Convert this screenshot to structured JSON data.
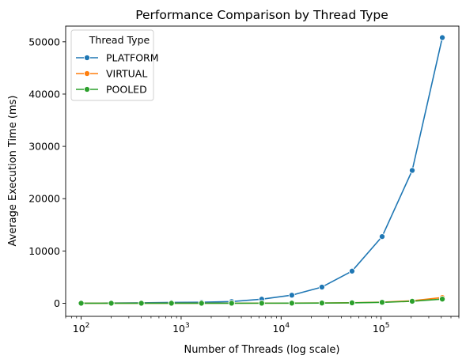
{
  "chart_data": {
    "type": "line",
    "title": "Performance Comparison by Thread Type",
    "xlabel": "Number of Threads (log scale)",
    "ylabel": "Average Execution Time (ms)",
    "xscale": "log",
    "xlim": [
      70,
      600000
    ],
    "ylim": [
      -2500,
      53000
    ],
    "x_ticks": [
      {
        "value": 100,
        "base": "10",
        "exp": "2"
      },
      {
        "value": 1000,
        "base": "10",
        "exp": "3"
      },
      {
        "value": 10000,
        "base": "10",
        "exp": "4"
      },
      {
        "value": 100000,
        "base": "10",
        "exp": "5"
      }
    ],
    "y_ticks": [
      0,
      10000,
      20000,
      30000,
      40000,
      50000
    ],
    "grid": false,
    "legend": {
      "title": "Thread Type",
      "placement": "top-left"
    },
    "x": [
      100,
      200,
      400,
      800,
      1600,
      3200,
      6400,
      12800,
      25600,
      51200,
      102400,
      204800,
      409600
    ],
    "series": [
      {
        "name": "PLATFORM",
        "color": "#1f77b4",
        "values": [
          20,
          40,
          80,
          160,
          200,
          330,
          780,
          1550,
          3100,
          6150,
          12750,
          25400,
          50800
        ]
      },
      {
        "name": "VIRTUAL",
        "color": "#ff7f0e",
        "values": [
          5,
          5,
          6,
          8,
          10,
          14,
          20,
          30,
          50,
          100,
          220,
          480,
          1100
        ]
      },
      {
        "name": "POOLED",
        "color": "#2ca02c",
        "values": [
          4,
          4,
          5,
          6,
          8,
          10,
          15,
          25,
          40,
          80,
          180,
          380,
          800
        ]
      }
    ]
  }
}
